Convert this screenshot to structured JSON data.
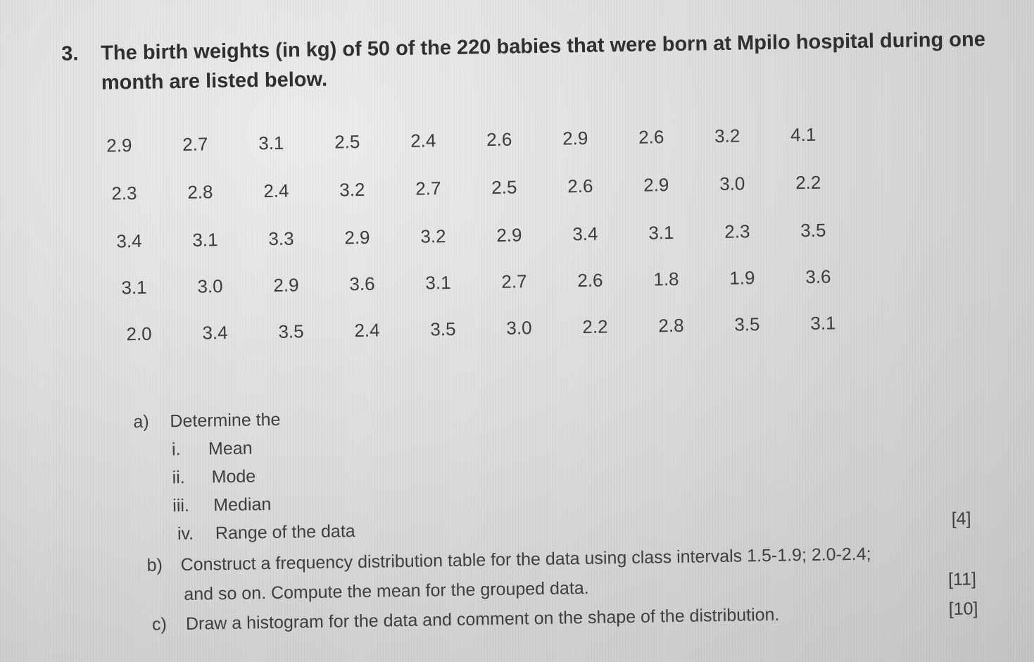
{
  "question": {
    "number": "3.",
    "line1": "The birth weights (in kg) of 50 of the 220 babies that were born at Mpilo hospital during one",
    "line2": "month are listed below."
  },
  "data_rows": [
    [
      "2.9",
      "2.7",
      "3.1",
      "2.5",
      "2.4",
      "2.6",
      "2.9",
      "2.6",
      "3.2",
      "4.1"
    ],
    [
      "2.3",
      "2.8",
      "2.4",
      "3.2",
      "2.7",
      "2.5",
      "2.6",
      "2.9",
      "3.0",
      "2.2"
    ],
    [
      "3.4",
      "3.1",
      "3.3",
      "2.9",
      "3.2",
      "2.9",
      "3.4",
      "3.1",
      "2.3",
      "3.5"
    ],
    [
      "3.1",
      "3.0",
      "2.9",
      "3.6",
      "3.1",
      "2.7",
      "2.6",
      "1.8",
      "1.9",
      "3.6"
    ],
    [
      "2.0",
      "3.4",
      "3.5",
      "2.4",
      "3.5",
      "3.0",
      "2.2",
      "2.8",
      "3.5",
      "3.1"
    ]
  ],
  "part_a": {
    "label": "a)",
    "text": "Determine the",
    "items": [
      {
        "num": "i.",
        "text": "Mean"
      },
      {
        "num": "ii.",
        "text": "Mode"
      },
      {
        "num": "iii.",
        "text": "Median"
      },
      {
        "num": "iv.",
        "text": "Range of the data"
      }
    ],
    "marks": "[4]"
  },
  "part_b": {
    "label": "b)",
    "line1": "Construct a frequency distribution table for the data using class intervals 1.5-1.9; 2.0-2.4;",
    "line2": "and so on. Compute the mean for the grouped data.",
    "marks": "[11]"
  },
  "part_c": {
    "label": "c)",
    "text": "Draw a histogram for the data and comment on the shape of the distribution.",
    "marks": "[10]"
  }
}
